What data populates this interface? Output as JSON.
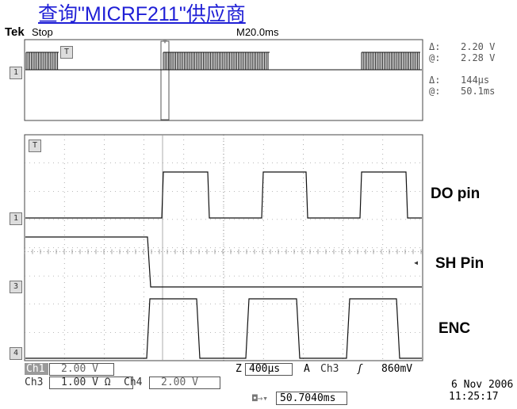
{
  "header": {
    "link_text": "查询\"MICRF211\"供应商",
    "brand": "Tek",
    "status": "Stop",
    "main_timebase": "M20.0ms"
  },
  "cursor_readout": {
    "delta_v_label": "Δ:",
    "delta_v": "2.20 V",
    "at_v_label": "@:",
    "at_v": "2.28 V",
    "delta_t_label": "Δ:",
    "delta_t": "144μs",
    "at_t_label": "@:",
    "at_t": "50.1ms"
  },
  "channel_markers": {
    "ch1": "1",
    "ch3": "3",
    "ch4": "4",
    "trig": "T"
  },
  "trace_labels": {
    "do": "DO pin",
    "sh": "SH Pin",
    "enc": "ENC"
  },
  "bottom": {
    "ch1_label": "Ch1",
    "ch1_scale": "2.00 V",
    "ch3_label": "Ch3",
    "ch3_scale": "1.00 V Ω",
    "ch4_label": "Ch4",
    "ch4_scale": "2.00 V",
    "zoom_label": "Z",
    "zoom_value": "400μs",
    "trig_mode": "A",
    "trig_source": "Ch3",
    "trig_slope": "ʃ",
    "trig_level": "860mV",
    "position": "50.7040ms",
    "date": "6 Nov 2006",
    "time": "11:25:17"
  },
  "colors": {
    "link": "#1f1fd6",
    "trace": "#111111",
    "grid": "#666666"
  }
}
